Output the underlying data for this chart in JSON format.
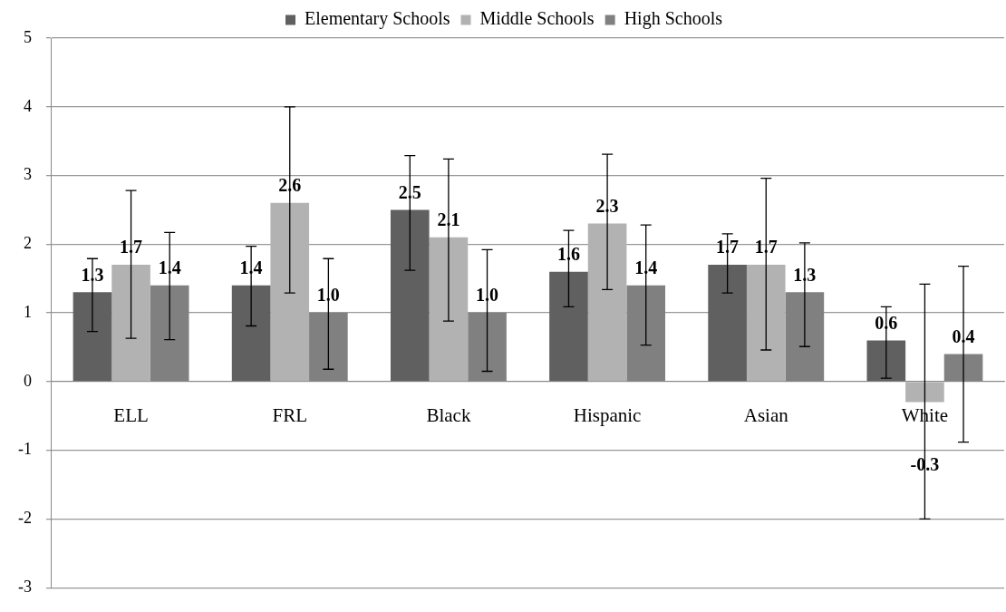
{
  "chart_data": {
    "type": "bar",
    "categories": [
      "ELL",
      "FRL",
      "Black",
      "Hispanic",
      "Asian",
      "White"
    ],
    "series": [
      {
        "name": "Elementary Schools",
        "color": "#606060",
        "values": [
          1.3,
          1.4,
          2.5,
          1.6,
          1.7,
          0.6
        ],
        "errors": [
          [
            0.73,
            1.79
          ],
          [
            0.81,
            1.97
          ],
          [
            1.62,
            3.29
          ],
          [
            1.09,
            2.2
          ],
          [
            1.29,
            2.15
          ],
          [
            0.05,
            1.09
          ]
        ]
      },
      {
        "name": "Middle Schools",
        "color": "#b2b2b2",
        "values": [
          1.7,
          2.6,
          2.1,
          2.3,
          1.7,
          -0.3
        ],
        "errors": [
          [
            0.63,
            2.78
          ],
          [
            1.29,
            4.0
          ],
          [
            0.88,
            3.24
          ],
          [
            1.34,
            3.31
          ],
          [
            0.46,
            2.96
          ],
          [
            -2.0,
            1.42
          ]
        ]
      },
      {
        "name": "High Schools",
        "color": "#808080",
        "values": [
          1.4,
          1.0,
          1.0,
          1.4,
          1.3,
          0.4
        ],
        "errors": [
          [
            0.61,
            2.17
          ],
          [
            0.18,
            1.79
          ],
          [
            0.15,
            1.92
          ],
          [
            0.53,
            2.28
          ],
          [
            0.51,
            2.02
          ],
          [
            -0.88,
            1.68
          ]
        ]
      }
    ],
    "ylim": [
      -3,
      5
    ],
    "yticks": [
      -3,
      -2,
      -1,
      0,
      1,
      2,
      3,
      4,
      5
    ],
    "value_labels": [
      [
        "1.3",
        "1.4",
        "2.5",
        "1.6",
        "1.7",
        "0.6"
      ],
      [
        "1.7",
        "2.6",
        "2.1",
        "2.3",
        "1.7",
        "-0.3"
      ],
      [
        "1.4",
        "1.0",
        "1.0",
        "1.4",
        "1.3",
        "0.4"
      ]
    ],
    "grid": "y",
    "legend": "top"
  }
}
